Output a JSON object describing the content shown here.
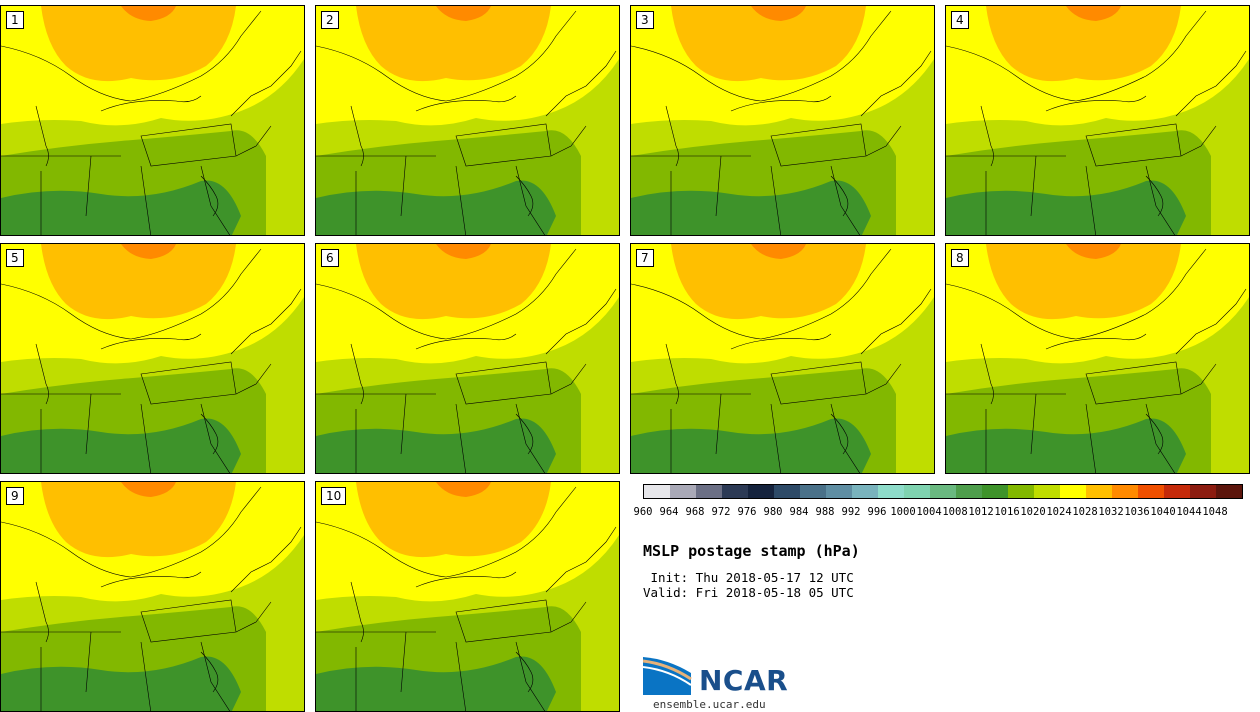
{
  "title": "MSLP postage stamp (hPa)",
  "init": " Init: Thu 2018-05-17 12 UTC",
  "valid": "Valid: Fri 2018-05-18 05 UTC",
  "logo_text": "NCAR",
  "url": "ensemble.ucar.edu",
  "panels": [
    "1",
    "2",
    "3",
    "4",
    "5",
    "6",
    "7",
    "8",
    "9",
    "10"
  ],
  "colorbar": {
    "colors": [
      "#e6e6ea",
      "#a9a9b7",
      "#6b6f85",
      "#2c3a55",
      "#15233d",
      "#2d4a67",
      "#4a7189",
      "#5f8ea3",
      "#79b3bd",
      "#8edcca",
      "#7fd3b0",
      "#6ab980",
      "#4e9e4c",
      "#3e932a",
      "#82b800",
      "#bfdd00",
      "#ffff00",
      "#ffbf00",
      "#ff8a00",
      "#f05000",
      "#c52a0a",
      "#8c1c10",
      "#5c150c"
    ],
    "ticks": [
      "960",
      "964",
      "968",
      "972",
      "976",
      "980",
      "984",
      "988",
      "992",
      "996",
      "1000",
      "1004",
      "1008",
      "1012",
      "1016",
      "1020",
      "1024",
      "1028",
      "1032",
      "1036",
      "1040",
      "1044",
      "1048"
    ]
  },
  "fill_colors": {
    "c1028": "#ffbf00",
    "c1024": "#ffff00",
    "c1020": "#bfdd00",
    "c1016": "#82b800",
    "c1012": "#3e932a",
    "c1032": "#ff8a00"
  }
}
